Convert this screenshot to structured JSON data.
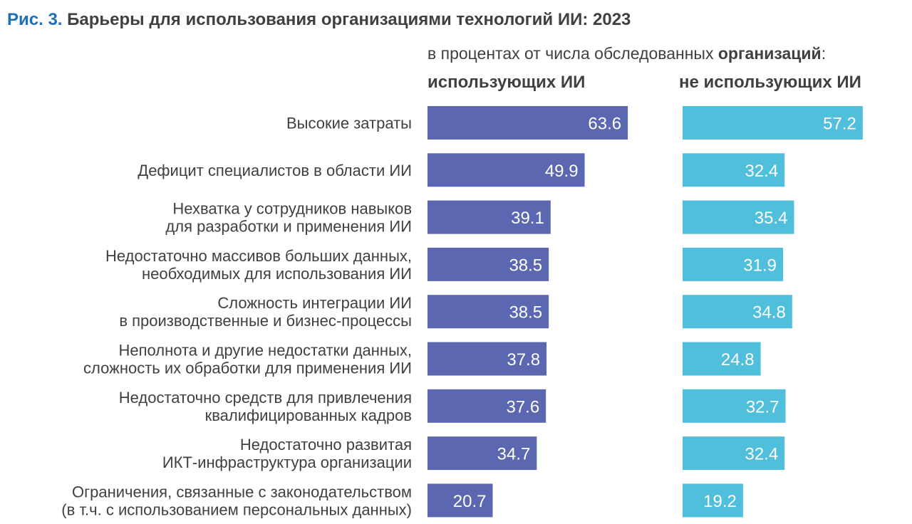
{
  "figure": {
    "label": "Рис. 3.",
    "title": "Барьеры для использования организациями технологий ИИ: 2023",
    "subtitle_prefix": "в процентах от числа обследованных",
    "subtitle_bold": "организаций",
    "subtitle_suffix": ":"
  },
  "colors": {
    "series_1": "#5b67b0",
    "series_2": "#4fbfdc",
    "label_text": "#404040",
    "figure_label": "#1f6fb5"
  },
  "chart_data": {
    "type": "bar",
    "orientation": "horizontal",
    "layout": "two side-by-side panels",
    "title": "Барьеры для использования организациями технологий ИИ: 2023",
    "unit_note": "в процентах от числа обследованных организаций",
    "categories": [
      [
        "Высокие затраты"
      ],
      [
        "Дефицит специалистов в области ИИ"
      ],
      [
        "Нехватка у сотрудников навыков",
        "для разработки и применения ИИ"
      ],
      [
        "Недостаточно массивов больших данных,",
        "необходимых для использования ИИ"
      ],
      [
        "Сложность интеграции ИИ",
        "в производственные и бизнес-процессы"
      ],
      [
        "Неполнота и другие недостатки данных,",
        "сложность их обработки для применения ИИ"
      ],
      [
        "Недостаточно средств для привлечения",
        "квалифицированных кадров"
      ],
      [
        "Недостаточно развитая",
        "ИКТ-инфраструктура организации"
      ],
      [
        "Ограничения, связанные с законодательством",
        "(в т.ч. с использованием персональных данных)"
      ]
    ],
    "series": [
      {
        "name": "использующих ИИ",
        "values": [
          63.6,
          49.9,
          39.1,
          38.5,
          38.5,
          37.8,
          37.6,
          34.7,
          20.7
        ]
      },
      {
        "name": "не использующих ИИ",
        "values": [
          57.2,
          32.4,
          35.4,
          31.9,
          34.8,
          24.8,
          32.7,
          32.4,
          19.2
        ]
      }
    ],
    "data_labels": true,
    "grid": false,
    "legend": "none"
  }
}
